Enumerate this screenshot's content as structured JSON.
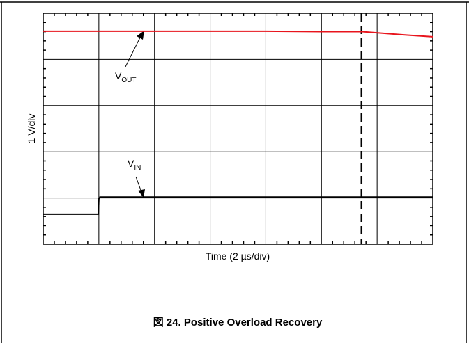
{
  "chart_data": {
    "type": "line",
    "caption": "図 24. Positive Overload Recovery",
    "x_label": "Time (2 µs/div)",
    "y_label": "1 V/div",
    "xlim": [
      0,
      7
    ],
    "ylim": [
      0,
      5
    ],
    "xticks": [
      0,
      1,
      2,
      3,
      4,
      5,
      6,
      7
    ],
    "yticks": [
      0,
      1,
      2,
      3,
      4,
      5
    ],
    "grid": true,
    "series": [
      {
        "color": "#e8141c",
        "x": [
          0,
          1,
          2,
          3,
          4,
          5,
          5.73,
          6.5,
          7
        ],
        "values": [
          4.61,
          4.61,
          4.61,
          4.61,
          4.61,
          4.6,
          4.6,
          4.53,
          4.49
        ]
      },
      {
        "color": "#000000",
        "x": [
          0,
          0.99,
          1.0,
          1.02,
          7
        ],
        "values": [
          0.65,
          0.65,
          0.98,
          1.02,
          1.02
        ]
      }
    ],
    "markers": [
      {
        "x": 5.72
      }
    ],
    "annotations": [
      {
        "text": "V",
        "sub": "OUT"
      },
      {
        "text": "V",
        "sub": "IN"
      }
    ]
  }
}
